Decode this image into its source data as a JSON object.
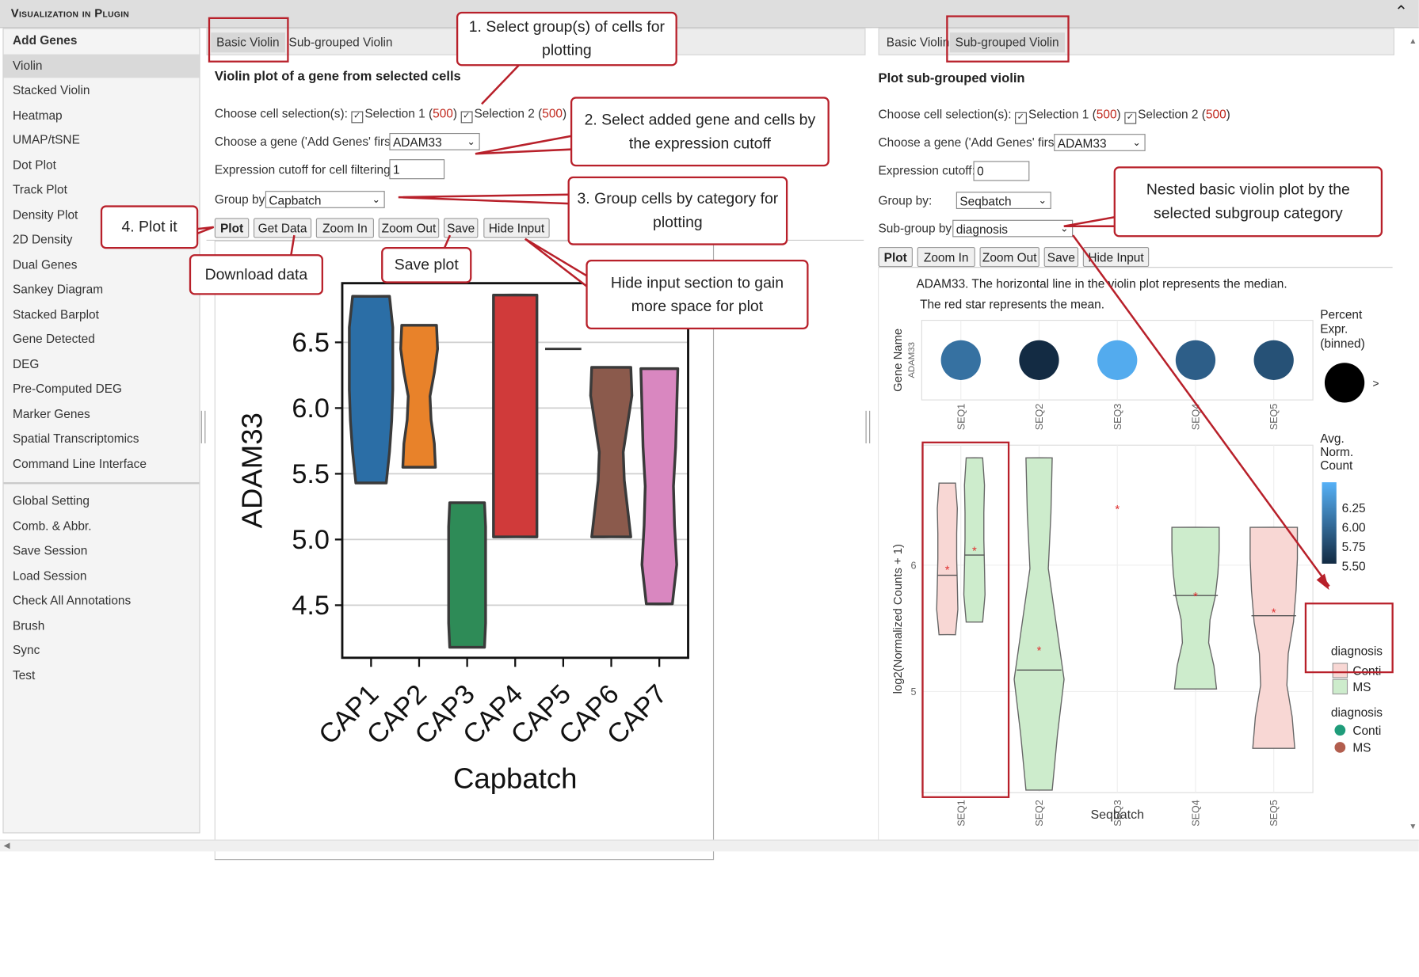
{
  "window": {
    "title": "Visualization in Plugin",
    "collapse_icon": "chevron-up-icon"
  },
  "sidebar": {
    "items": [
      "Add Genes",
      "Violin",
      "Stacked Violin",
      "Heatmap",
      "UMAP/tSNE",
      "Dot Plot",
      "Track Plot",
      "Density Plot",
      "2D Density",
      "Dual Genes",
      "Sankey Diagram",
      "Stacked Barplot",
      "Gene Detected",
      "DEG",
      "Pre-Computed DEG",
      "Marker Genes",
      "Spatial Transcriptomics",
      "Command Line Interface"
    ],
    "items2": [
      "Global Setting",
      "Comb. & Abbr.",
      "Save Session",
      "Load Session",
      "Check All Annotations",
      "Brush",
      "Sync",
      "Test"
    ],
    "active": "Violin",
    "bold": "Add Genes"
  },
  "left": {
    "tabs": [
      "Basic Violin",
      "Sub-grouped Violin"
    ],
    "title": "Violin plot of a gene from selected cells",
    "cell_selection_label": "Choose cell selection(s):",
    "sel1_label": "Selection 1 (",
    "sel1_count": "500",
    "sel2_label": "Selection 2 (",
    "sel2_count": "500",
    "close_paren": ")",
    "gene_label": "Choose a gene ('Add Genes' first):",
    "gene_value": "ADAM33",
    "cutoff_label": "Expression cutoff for cell filtering:",
    "cutoff_value": "1",
    "group_label": "Group by:",
    "group_value": "Capbatch",
    "buttons": [
      "Plot",
      "Get Data",
      "Zoom In",
      "Zoom Out",
      "Save",
      "Hide Input"
    ]
  },
  "right": {
    "tabs": [
      "Basic Violin",
      "Sub-grouped Violin"
    ],
    "title": "Plot sub-grouped violin",
    "cell_selection_label": "Choose cell selection(s):",
    "sel1_label": "Selection 1 (",
    "sel1_count": "500",
    "sel2_label": "Selection 2 (",
    "sel2_count": "500",
    "close_paren": ")",
    "gene_label": "Choose a gene ('Add Genes' first):",
    "gene_value": "ADAM33",
    "cutoff_label": "Expression cutoff:",
    "cutoff_value": "0",
    "group_label": "Group by:",
    "group_value": "Seqbatch",
    "subgroup_label": "Sub-group by:",
    "subgroup_value": "diagnosis",
    "buttons": [
      "Plot",
      "Zoom In",
      "Zoom Out",
      "Save",
      "Hide Input"
    ]
  },
  "annotations": {
    "a1": "1. Select group(s) of cells for plotting",
    "a2": "2. Select added gene and cells by the expression cutoff",
    "a3": "3. Group cells by category for plotting",
    "a4": "4. Plot it",
    "a5": "Download data",
    "a6": "Save plot",
    "a7": "Hide input section to gain more space for plot",
    "a8": "Nested basic violin plot by the selected subgroup category"
  },
  "chart_data": [
    {
      "type": "violin",
      "ylabel": "ADAM33",
      "xlabel": "Capbatch",
      "categories": [
        "CAP1",
        "CAP2",
        "CAP3",
        "CAP4",
        "CAP5",
        "CAP6",
        "CAP7"
      ],
      "colors": [
        "#2b6ea6",
        "#e8822a",
        "#2e8b57",
        "#d03a3a",
        "#555555",
        "#8b5a4c",
        "#d987c0"
      ],
      "ranges": [
        [
          5.43,
          6.85
        ],
        [
          5.55,
          6.63
        ],
        [
          4.18,
          5.28
        ],
        [
          5.02,
          6.86
        ],
        [
          6.45,
          6.45
        ],
        [
          5.02,
          6.31
        ],
        [
          4.51,
          6.3
        ]
      ],
      "yticks": [
        4.5,
        5.0,
        5.5,
        6.0,
        6.5
      ],
      "ylim": [
        4.1,
        6.95
      ]
    },
    {
      "type": "dot",
      "title_line1": "ADAM33. The horizontal line in the violin plot represents the median.",
      "title_line2": "The red star represents the mean.",
      "ylabel": "Gene Name",
      "ytick": "ADAM33",
      "categories": [
        "SEQ1",
        "SEQ2",
        "SEQ3",
        "SEQ4",
        "SEQ5"
      ],
      "avg_norm_count": [
        5.95,
        5.4,
        6.4,
        5.8,
        5.7
      ],
      "legend_percent_title": [
        "Percent",
        "Expr.",
        "(binned)"
      ],
      "legend_percent_label": ">",
      "legend_color_title": [
        "Avg.",
        "Norm.",
        "Count"
      ],
      "legend_color_ticks": [
        6.25,
        6.0,
        5.75,
        5.5
      ]
    },
    {
      "type": "violin",
      "xlabel": "Seqbatch",
      "ylabel": "log2(Normalized Counts + 1)",
      "categories": [
        "SEQ1",
        "SEQ2",
        "SEQ3",
        "SEQ4",
        "SEQ5"
      ],
      "yticks": [
        5,
        6
      ],
      "ylim": [
        4.2,
        6.95
      ],
      "series": [
        {
          "name": "Conti",
          "color": "#f8d7d4",
          "ranges": [
            [
              5.45,
              6.65
            ],
            null,
            null,
            null,
            [
              4.55,
              6.3
            ]
          ],
          "medians": [
            5.92,
            null,
            null,
            null,
            5.6
          ],
          "means": [
            5.97,
            null,
            6.45,
            null,
            5.63
          ]
        },
        {
          "name": "MS",
          "color": "#cdeccc",
          "ranges": [
            [
              5.55,
              6.85
            ],
            [
              4.22,
              6.85
            ],
            null,
            [
              5.02,
              6.3
            ],
            null
          ],
          "medians": [
            6.08,
            5.17,
            null,
            5.76,
            null
          ],
          "means": [
            6.12,
            5.33,
            null,
            5.76,
            null
          ]
        }
      ],
      "legend_fill_title": "diagnosis",
      "legend_point_title": "diagnosis",
      "legend_point_colors": [
        "#1f9c7a",
        "#b25e4e"
      ]
    }
  ]
}
